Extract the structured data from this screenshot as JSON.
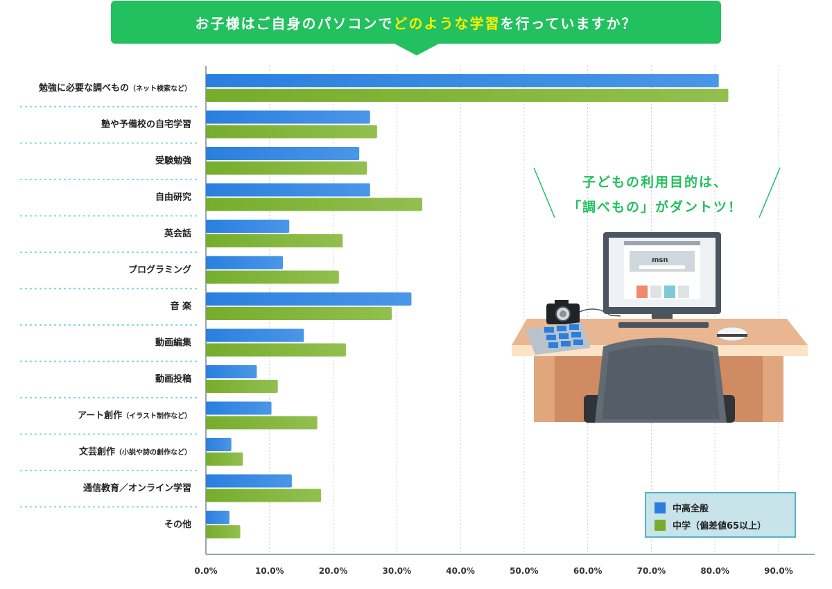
{
  "header": {
    "title_pre": "お子様はご自身のパソコンで",
    "title_highlight": "どのような学習",
    "title_post": "を行っていますか？"
  },
  "callout": {
    "line1": "子どもの利用目的は、",
    "line2": "「調べもの」がダントツ！"
  },
  "illustration": {
    "screen_logo": "msn"
  },
  "chart_data": {
    "type": "bar",
    "orientation": "horizontal",
    "categories": [
      {
        "label": "勉強に必要な調べもの",
        "note": "（ネット検索など）"
      },
      {
        "label": "塾や予備校の自宅学習",
        "note": ""
      },
      {
        "label": "受験勉強",
        "note": ""
      },
      {
        "label": "自由研究",
        "note": ""
      },
      {
        "label": "英会話",
        "note": ""
      },
      {
        "label": "プログラミング",
        "note": ""
      },
      {
        "label": "音 楽",
        "note": ""
      },
      {
        "label": "動画編集",
        "note": ""
      },
      {
        "label": "動画投稿",
        "note": ""
      },
      {
        "label": "アート創作",
        "note": "（イラスト制作など）"
      },
      {
        "label": "文芸創作",
        "note": "（小説や詩の創作など）"
      },
      {
        "label": "通信教育／オンライン学習",
        "note": ""
      },
      {
        "label": "その他",
        "note": ""
      }
    ],
    "series": [
      {
        "name": "中高全般",
        "color": "#2a7fde",
        "values": [
          80.6,
          25.8,
          24.1,
          25.8,
          13.1,
          12.1,
          32.3,
          15.4,
          8.0,
          10.3,
          4.0,
          13.5,
          3.7
        ]
      },
      {
        "name": "中学（偏差値65以上）",
        "color": "#76ad2c",
        "values": [
          82.1,
          26.9,
          25.3,
          34.0,
          21.5,
          20.9,
          29.2,
          22.0,
          11.3,
          17.5,
          5.8,
          18.1,
          5.4
        ]
      }
    ],
    "x_ticks": [
      "0.0%",
      "10.0%",
      "20.0%",
      "30.0%",
      "40.0%",
      "50.0%",
      "60.0%",
      "70.0%",
      "80.0%",
      "90.0%"
    ],
    "xlim": [
      0,
      90
    ],
    "grid": true,
    "legend_position": "bottom-right"
  }
}
